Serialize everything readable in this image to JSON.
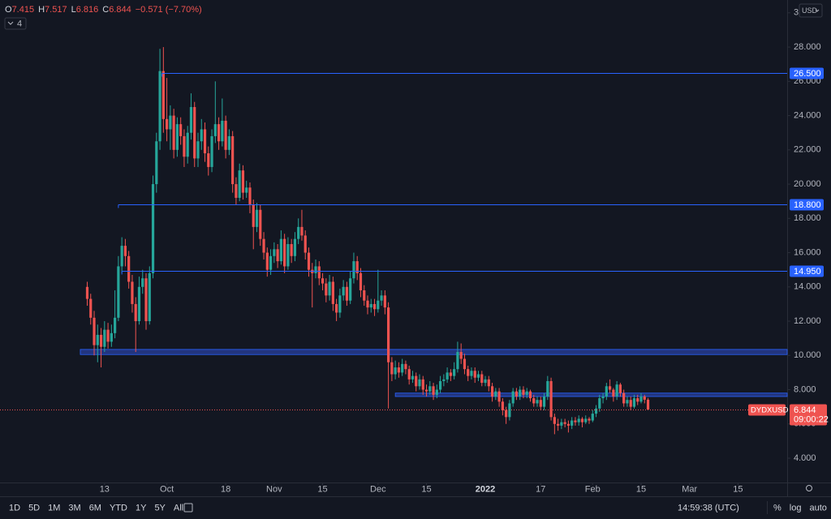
{
  "chart_data": {
    "type": "candlestick",
    "symbol": "DYDXUSD",
    "x": [
      7,
      8,
      9,
      10,
      11,
      12,
      13,
      14,
      15,
      16,
      17,
      18,
      19,
      20,
      21,
      22,
      23,
      24,
      25,
      26,
      27,
      28,
      29,
      30,
      31,
      32,
      33,
      34,
      35,
      36,
      37,
      38,
      39,
      40,
      41,
      42,
      43,
      44,
      45,
      46,
      47,
      48,
      49,
      50,
      51,
      52,
      53,
      54,
      55,
      56,
      57,
      58,
      59,
      60,
      61,
      62,
      63,
      64,
      65,
      66,
      67,
      68,
      69,
      70,
      71,
      72,
      73,
      74,
      75,
      76,
      77,
      78,
      79,
      80,
      81,
      82,
      83,
      84,
      85,
      86,
      87,
      88,
      89,
      90,
      91,
      92,
      93,
      94,
      95,
      96,
      97,
      98,
      99,
      100,
      101,
      102,
      103,
      104,
      105,
      106,
      107,
      108,
      109,
      110,
      111,
      112,
      113,
      114,
      115,
      116,
      117,
      118,
      119,
      120,
      121,
      122,
      123,
      124,
      125,
      126,
      127,
      128,
      129,
      130,
      131,
      132,
      133,
      134,
      135,
      136,
      137,
      138,
      139,
      140,
      141,
      142,
      143,
      144,
      145,
      146,
      147,
      148,
      149,
      150,
      151,
      152,
      153,
      154,
      155,
      156,
      157,
      158,
      159,
      160,
      161,
      162,
      163,
      164,
      165,
      166,
      167,
      168,
      169
    ],
    "open": [
      14.0,
      13.3,
      12.2,
      10.6,
      11.2,
      10.5,
      11.5,
      10.8,
      11.3,
      12.2,
      15.2,
      16.4,
      15.8,
      14.3,
      13.0,
      12.0,
      14.0,
      14.5,
      12.0,
      14.8,
      20.0,
      22.5,
      26.6,
      23.8,
      23.2,
      24.0,
      22.0,
      23.5,
      22.8,
      21.6,
      23.0,
      24.5,
      21.5,
      22.5,
      23.2,
      21.8,
      21.0,
      22.8,
      23.5,
      22.5,
      23.7,
      22.0,
      22.8,
      20.0,
      19.2,
      20.8,
      19.5,
      19.8,
      18.8,
      17.5,
      18.5,
      16.8,
      16.0,
      15.0,
      15.8,
      16.2,
      15.5,
      16.8,
      15.2,
      16.5,
      15.8,
      16.8,
      17.5,
      17.0,
      16.0,
      15.0,
      14.8,
      15.2,
      14.5,
      14.2,
      13.5,
      14.3,
      13.0,
      12.5,
      13.5,
      14.0,
      13.2,
      14.5,
      15.5,
      14.8,
      13.8,
      13.2,
      12.8,
      13.0,
      12.7,
      13.2,
      13.5,
      12.8,
      9.6,
      8.9,
      9.3,
      9.0,
      9.5,
      9.2,
      8.6,
      8.8,
      8.2,
      8.6,
      8.0,
      7.9,
      8.2,
      7.7,
      8.0,
      8.5,
      8.6,
      9.0,
      8.8,
      9.2,
      10.2,
      9.8,
      9.2,
      8.8,
      9.1,
      8.7,
      8.9,
      8.4,
      8.6,
      8.2,
      7.6,
      7.9,
      7.3,
      6.8,
      6.4,
      7.2,
      7.9,
      7.6,
      8.0,
      7.7,
      7.9,
      7.5,
      7.2,
      7.4,
      7.0,
      7.6,
      8.5,
      6.4,
      6.0,
      5.9,
      6.1,
      6.0,
      5.9,
      6.2,
      6.1,
      6.3,
      6.1,
      6.3,
      6.2,
      6.6,
      6.9,
      7.5,
      7.6,
      8.2,
      8.0,
      7.6,
      8.3,
      7.8,
      7.2,
      7.4,
      7.0,
      7.5,
      7.3,
      7.6,
      7.415
    ],
    "high": [
      14.3,
      13.6,
      12.6,
      11.8,
      11.6,
      12.0,
      11.9,
      11.8,
      13.8,
      15.8,
      16.9,
      16.8,
      16.1,
      14.7,
      13.4,
      14.6,
      15.0,
      14.8,
      15.2,
      20.5,
      23.0,
      27.9,
      28.0,
      26.2,
      24.6,
      24.4,
      23.9,
      23.9,
      23.2,
      23.4,
      25.3,
      24.8,
      23.0,
      23.8,
      23.6,
      22.2,
      23.2,
      26.0,
      23.9,
      25.0,
      24.0,
      23.2,
      23.1,
      20.4,
      21.2,
      21.1,
      20.2,
      20.1,
      19.1,
      18.9,
      18.8,
      17.2,
      16.3,
      16.2,
      16.6,
      16.5,
      17.3,
      17.1,
      16.9,
      16.8,
      17.2,
      18.0,
      18.5,
      17.3,
      16.3,
      15.4,
      15.6,
      15.5,
      14.8,
      14.5,
      14.7,
      14.6,
      13.3,
      13.9,
      14.4,
      14.3,
      14.9,
      16.0,
      15.8,
      15.1,
      14.1,
      13.5,
      13.3,
      13.3,
      15.0,
      13.8,
      13.8,
      13.1,
      9.9,
      9.7,
      9.6,
      9.8,
      9.7,
      9.4,
      9.1,
      9.0,
      8.9,
      8.8,
      8.3,
      8.5,
      8.4,
      8.3,
      8.8,
      8.9,
      9.3,
      9.2,
      9.6,
      10.8,
      10.7,
      10.1,
      9.4,
      9.3,
      9.3,
      9.1,
      9.1,
      8.8,
      8.8,
      8.4,
      8.1,
      8.1,
      7.5,
      7.0,
      7.4,
      8.1,
      8.1,
      8.2,
      8.2,
      8.1,
      8.0,
      7.7,
      7.6,
      7.6,
      7.8,
      8.8,
      8.7,
      6.6,
      6.3,
      6.3,
      6.3,
      6.2,
      6.4,
      6.4,
      6.5,
      6.4,
      6.5,
      6.4,
      6.8,
      7.1,
      7.7,
      7.8,
      8.4,
      8.6,
      8.1,
      8.5,
      8.4,
      8.0,
      7.6,
      7.6,
      7.7,
      7.7,
      7.8,
      7.7,
      7.517
    ],
    "low": [
      12.9,
      11.8,
      10.0,
      9.6,
      9.3,
      10.2,
      10.4,
      10.5,
      11.0,
      12.0,
      14.8,
      15.2,
      13.9,
      12.5,
      10.2,
      11.8,
      13.6,
      11.5,
      11.8,
      14.5,
      19.5,
      22.0,
      23.0,
      22.5,
      22.0,
      21.5,
      21.6,
      22.3,
      21.0,
      21.2,
      22.6,
      21.0,
      21.0,
      22.0,
      21.3,
      20.5,
      20.7,
      22.4,
      22.0,
      22.2,
      21.5,
      21.7,
      19.5,
      18.8,
      19.0,
      19.1,
      19.2,
      18.3,
      16.2,
      17.2,
      16.4,
      15.6,
      14.6,
      14.7,
      15.4,
      15.1,
      15.3,
      14.8,
      15.0,
      15.4,
      15.5,
      16.5,
      16.7,
      15.6,
      14.6,
      12.8,
      14.5,
      14.1,
      13.8,
      13.1,
      13.2,
      12.6,
      12.0,
      12.2,
      13.2,
      12.9,
      13.0,
      14.2,
      14.4,
      13.4,
      12.9,
      12.4,
      12.5,
      12.3,
      12.5,
      12.9,
      12.4,
      6.9,
      8.5,
      8.6,
      8.7,
      8.8,
      8.9,
      8.3,
      8.4,
      7.9,
      8.0,
      7.7,
      7.6,
      7.7,
      7.4,
      7.5,
      7.8,
      8.2,
      8.4,
      8.5,
      8.6,
      9.0,
      9.5,
      8.9,
      8.5,
      8.6,
      8.4,
      8.5,
      8.2,
      8.2,
      7.9,
      7.3,
      7.4,
      7.0,
      6.5,
      6.0,
      6.2,
      7.0,
      7.4,
      7.4,
      7.5,
      7.5,
      7.3,
      7.0,
      7.0,
      6.8,
      6.8,
      7.4,
      6.2,
      5.4,
      5.6,
      5.7,
      5.8,
      5.5,
      5.7,
      5.9,
      5.9,
      5.8,
      6.0,
      6.0,
      6.1,
      6.4,
      6.7,
      7.2,
      7.4,
      7.8,
      7.3,
      7.4,
      7.6,
      7.0,
      7.0,
      6.8,
      6.9,
      7.1,
      7.2,
      7.2,
      6.816
    ],
    "close": [
      13.3,
      12.2,
      10.6,
      11.2,
      10.5,
      11.5,
      10.8,
      11.3,
      12.2,
      15.2,
      16.4,
      15.8,
      14.3,
      13.0,
      12.0,
      14.0,
      14.5,
      12.0,
      14.8,
      20.0,
      22.5,
      26.6,
      23.8,
      23.2,
      24.0,
      22.0,
      23.5,
      22.8,
      21.6,
      23.0,
      24.5,
      21.5,
      22.5,
      23.2,
      21.8,
      21.0,
      22.8,
      23.5,
      22.5,
      23.7,
      22.0,
      22.8,
      20.0,
      19.2,
      20.8,
      19.5,
      19.8,
      18.8,
      17.5,
      18.5,
      16.8,
      16.0,
      15.0,
      15.8,
      16.2,
      15.5,
      16.8,
      15.2,
      16.5,
      15.8,
      16.8,
      17.5,
      17.0,
      16.0,
      15.0,
      14.8,
      15.2,
      14.5,
      14.2,
      13.5,
      14.3,
      13.0,
      12.5,
      13.5,
      14.0,
      13.2,
      14.5,
      15.5,
      14.8,
      13.8,
      13.2,
      12.8,
      13.0,
      12.7,
      13.2,
      13.5,
      12.8,
      9.6,
      8.9,
      9.3,
      9.0,
      9.5,
      9.2,
      8.6,
      8.8,
      8.2,
      8.6,
      8.0,
      7.9,
      8.2,
      7.7,
      8.0,
      8.5,
      8.6,
      9.0,
      8.8,
      9.2,
      10.2,
      9.8,
      9.2,
      8.8,
      9.1,
      8.7,
      8.9,
      8.4,
      8.6,
      8.2,
      7.6,
      7.9,
      7.3,
      6.8,
      6.4,
      7.2,
      7.9,
      7.6,
      8.0,
      7.7,
      7.9,
      7.5,
      7.2,
      7.4,
      7.0,
      7.6,
      8.5,
      6.4,
      6.0,
      5.9,
      6.1,
      6.0,
      5.9,
      6.2,
      6.1,
      6.3,
      6.1,
      6.3,
      6.2,
      6.6,
      6.9,
      7.5,
      7.6,
      8.2,
      8.0,
      7.6,
      8.3,
      7.8,
      7.2,
      7.4,
      7.0,
      7.5,
      7.3,
      7.6,
      7.415,
      6.844
    ],
    "colors": {
      "up": "#26a69a",
      "down": "#ef5350",
      "level": "#2962ff",
      "zone": "#22357f"
    },
    "xlim": [
      -18.2,
      209.2
    ],
    "xticks": [
      {
        "value": 12,
        "label": "13"
      },
      {
        "value": 30,
        "label": "Oct"
      },
      {
        "value": 47,
        "label": "18"
      },
      {
        "value": 61,
        "label": "Nov"
      },
      {
        "value": 75,
        "label": "15"
      },
      {
        "value": 91,
        "label": "Dec"
      },
      {
        "value": 105,
        "label": "15"
      },
      {
        "value": 122,
        "label": "2022"
      },
      {
        "value": 138,
        "label": "17"
      },
      {
        "value": 153,
        "label": "Feb"
      },
      {
        "value": 167,
        "label": "15"
      },
      {
        "value": 181,
        "label": "Mar"
      },
      {
        "value": 195,
        "label": "15"
      }
    ],
    "ylim": [
      2.58,
      30.75
    ],
    "yticks": [
      {
        "value": 4,
        "label": "4.000"
      },
      {
        "value": 6,
        "label": "6.000"
      },
      {
        "value": 8,
        "label": "8.000"
      },
      {
        "value": 10,
        "label": "10.000"
      },
      {
        "value": 12,
        "label": "12.000"
      },
      {
        "value": 14,
        "label": "14.000"
      },
      {
        "value": 16,
        "label": "16.000"
      },
      {
        "value": 18,
        "label": "18.000"
      },
      {
        "value": 20,
        "label": "20.000"
      },
      {
        "value": 22,
        "label": "22.000"
      },
      {
        "value": 24,
        "label": "24.000"
      },
      {
        "value": 26,
        "label": "26.000"
      },
      {
        "value": 28,
        "label": "28.000"
      },
      {
        "value": 30,
        "label": "30.000"
      }
    ],
    "levels": [
      {
        "value": 26.5,
        "label": "26.500",
        "from": 28.6
      },
      {
        "value": 18.8,
        "label": "18.800",
        "from": 16
      },
      {
        "value": 14.95,
        "label": "14.950",
        "from": 17
      }
    ],
    "zones": [
      {
        "low": 10.05,
        "high": 10.35,
        "from": 5
      },
      {
        "low": 7.6,
        "high": 7.8,
        "from": 96
      }
    ],
    "last_price": {
      "value": 6.844,
      "countdown": "09:00:22"
    },
    "ohlc": [
      {
        "label": "O",
        "value": 7.415
      },
      {
        "label": "H",
        "value": 7.517
      },
      {
        "label": "L",
        "value": 6.816
      },
      {
        "label": "C",
        "value": 6.844
      }
    ],
    "change": "−0.571 (−7.70%)"
  },
  "ui": {
    "currency": "USD",
    "indicators": 4,
    "ranges": [
      "1D",
      "5D",
      "1M",
      "3M",
      "6M",
      "YTD",
      "1Y",
      "5Y",
      "All"
    ],
    "time": "14:59:38 (UTC)",
    "scale_buttons": [
      "%",
      "log",
      "auto"
    ]
  }
}
